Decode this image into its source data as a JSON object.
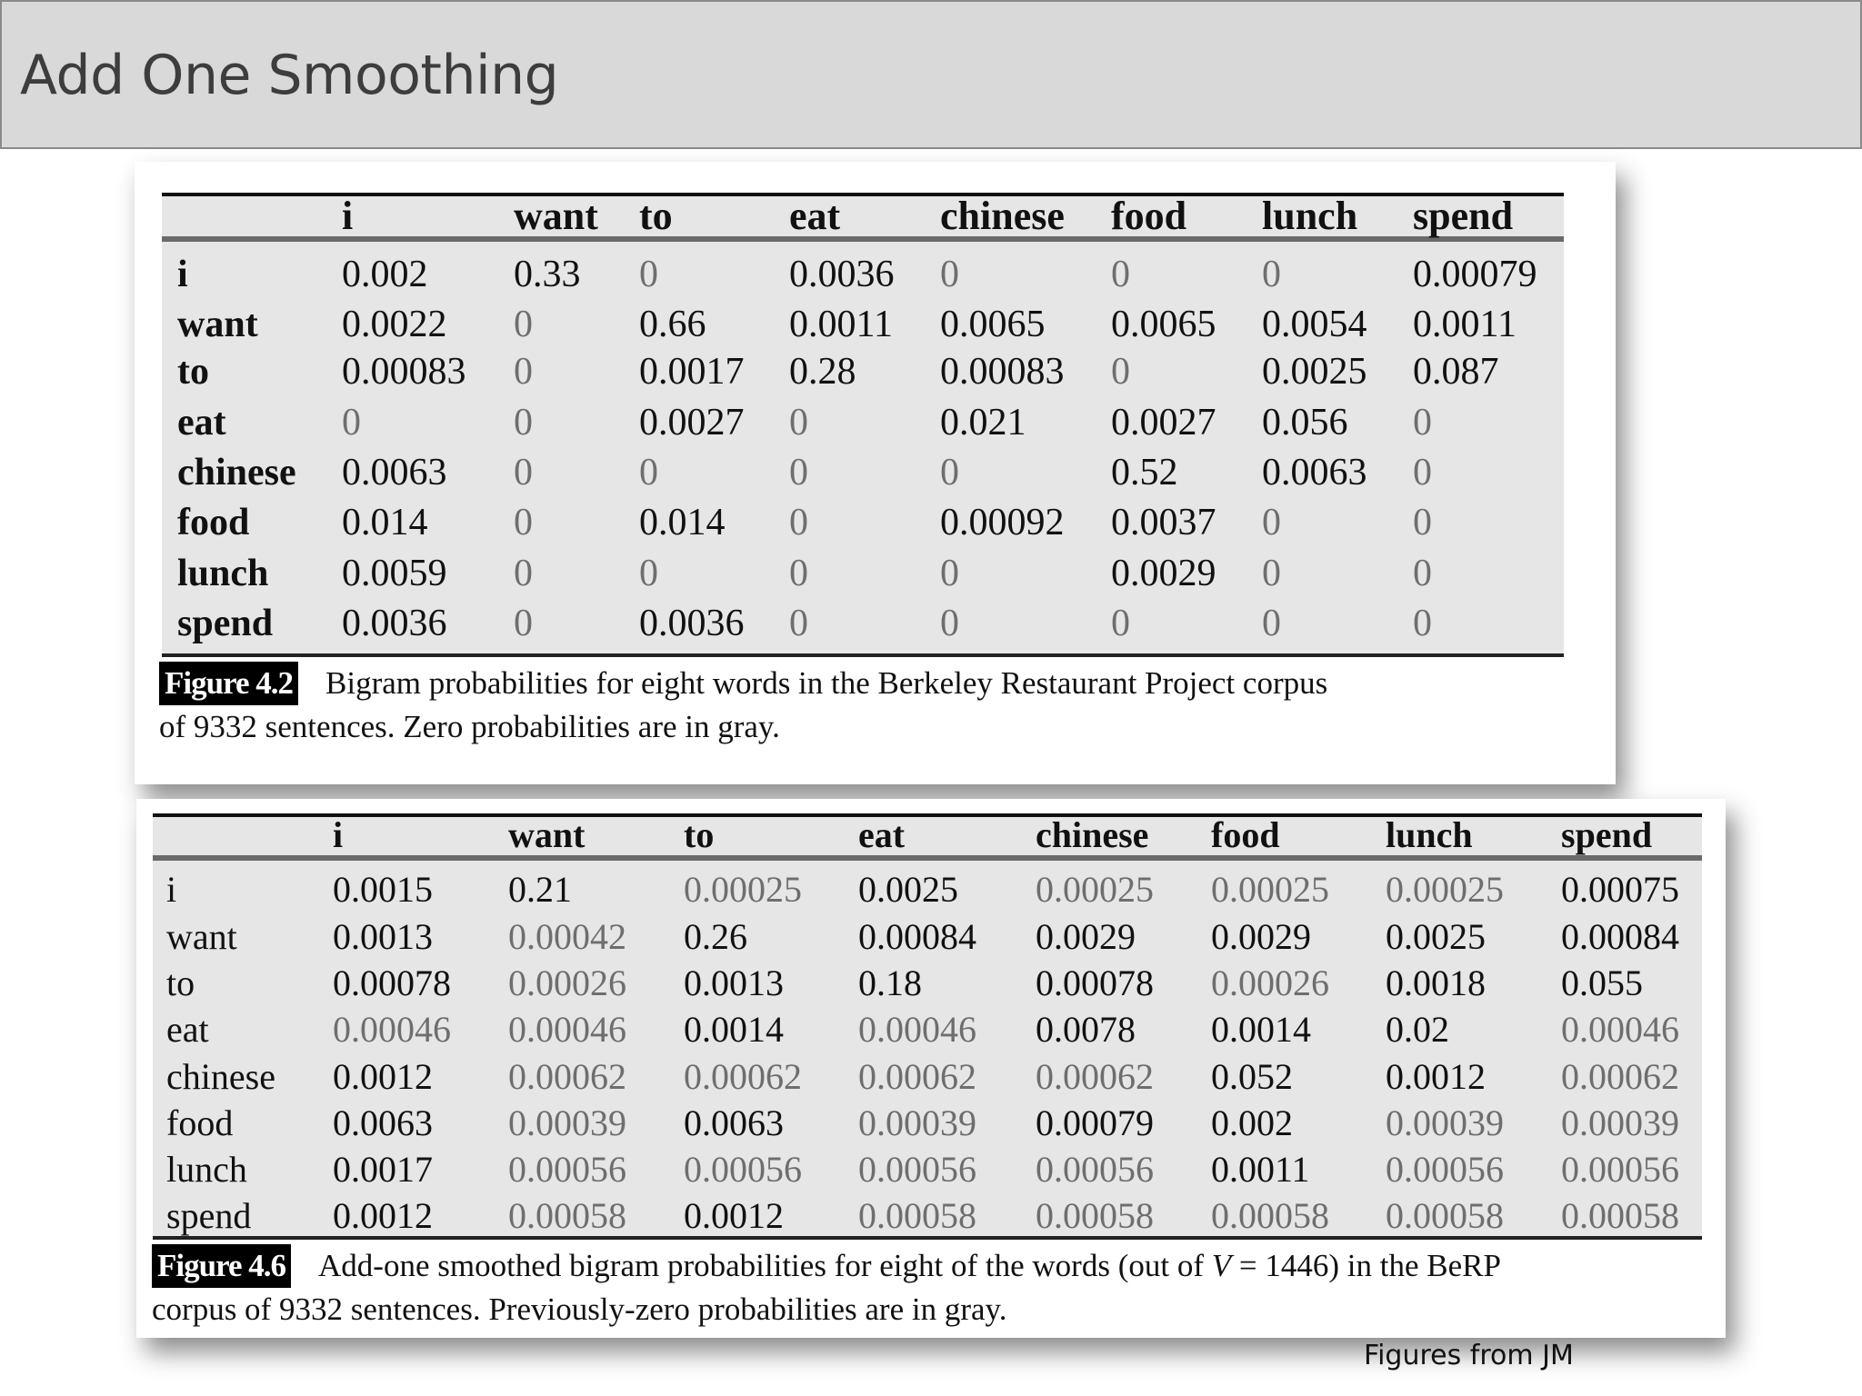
{
  "slide": {
    "title": "Add One Smoothing",
    "credit": "Figures from JM"
  },
  "figure1": {
    "label": "Figure 4.2",
    "caption_line1": "Bigram probabilities for eight words in the Berkeley Restaurant  Project corpus",
    "caption_line2": "of 9332 sentences. Zero probabilities are in gray.",
    "columns": [
      "i",
      "want",
      "to",
      "eat",
      "chinese",
      "food",
      "lunch",
      "spend"
    ],
    "rows": [
      {
        "label": "i",
        "values": [
          "0.002",
          "0.33",
          "0",
          "0.0036",
          "0",
          "0",
          "0",
          "0.00079"
        ]
      },
      {
        "label": "want",
        "values": [
          "0.0022",
          "0",
          "0.66",
          "0.0011",
          "0.0065",
          "0.0065",
          "0.0054",
          "0.0011"
        ]
      },
      {
        "label": "to",
        "values": [
          "0.00083",
          "0",
          "0.0017",
          "0.28",
          "0.00083",
          "0",
          "0.0025",
          "0.087"
        ]
      },
      {
        "label": "eat",
        "values": [
          "0",
          "0",
          "0.0027",
          "0",
          "0.021",
          "0.0027",
          "0.056",
          "0"
        ]
      },
      {
        "label": "chinese",
        "values": [
          "0.0063",
          "0",
          "0",
          "0",
          "0",
          "0.52",
          "0.0063",
          "0"
        ]
      },
      {
        "label": "food",
        "values": [
          "0.014",
          "0",
          "0.014",
          "0",
          "0.00092",
          "0.0037",
          "0",
          "0"
        ]
      },
      {
        "label": "lunch",
        "values": [
          "0.0059",
          "0",
          "0",
          "0",
          "0",
          "0.0029",
          "0",
          "0"
        ]
      },
      {
        "label": "spend",
        "values": [
          "0.0036",
          "0",
          "0.0036",
          "0",
          "0",
          "0",
          "0",
          "0"
        ]
      }
    ],
    "gray_mask": [
      [
        0,
        0,
        1,
        0,
        1,
        1,
        1,
        0
      ],
      [
        0,
        1,
        0,
        0,
        0,
        0,
        0,
        0
      ],
      [
        0,
        1,
        0,
        0,
        0,
        1,
        0,
        0
      ],
      [
        1,
        1,
        0,
        1,
        0,
        0,
        0,
        1
      ],
      [
        0,
        1,
        1,
        1,
        1,
        0,
        0,
        1
      ],
      [
        0,
        1,
        0,
        1,
        0,
        0,
        1,
        1
      ],
      [
        0,
        1,
        1,
        1,
        1,
        0,
        1,
        1
      ],
      [
        0,
        1,
        0,
        1,
        1,
        1,
        1,
        1
      ]
    ]
  },
  "figure2": {
    "label": "Figure 4.6",
    "caption_line1_pre": "Add-one smoothed bigram probabilities for eight of the words (out of ",
    "caption_var": "V",
    "caption_line1_post": " = 1446) in the BeRP",
    "caption_line2": "corpus of 9332 sentences. Previously-zero probabilities are in gray.",
    "columns": [
      "i",
      "want",
      "to",
      "eat",
      "chinese",
      "food",
      "lunch",
      "spend"
    ],
    "rows": [
      {
        "label": "i",
        "values": [
          "0.0015",
          "0.21",
          "0.00025",
          "0.0025",
          "0.00025",
          "0.00025",
          "0.00025",
          "0.00075"
        ]
      },
      {
        "label": "want",
        "values": [
          "0.0013",
          "0.00042",
          "0.26",
          "0.00084",
          "0.0029",
          "0.0029",
          "0.0025",
          "0.00084"
        ]
      },
      {
        "label": "to",
        "values": [
          "0.00078",
          "0.00026",
          "0.0013",
          "0.18",
          "0.00078",
          "0.00026",
          "0.0018",
          "0.055"
        ]
      },
      {
        "label": "eat",
        "values": [
          "0.00046",
          "0.00046",
          "0.0014",
          "0.00046",
          "0.0078",
          "0.0014",
          "0.02",
          "0.00046"
        ]
      },
      {
        "label": "chinese",
        "values": [
          "0.0012",
          "0.00062",
          "0.00062",
          "0.00062",
          "0.00062",
          "0.052",
          "0.0012",
          "0.00062"
        ]
      },
      {
        "label": "food",
        "values": [
          "0.0063",
          "0.00039",
          "0.0063",
          "0.00039",
          "0.00079",
          "0.002",
          "0.00039",
          "0.00039"
        ]
      },
      {
        "label": "lunch",
        "values": [
          "0.0017",
          "0.00056",
          "0.00056",
          "0.00056",
          "0.00056",
          "0.0011",
          "0.00056",
          "0.00056"
        ]
      },
      {
        "label": "spend",
        "values": [
          "0.0012",
          "0.00058",
          "0.0012",
          "0.00058",
          "0.00058",
          "0.00058",
          "0.00058",
          "0.00058"
        ]
      }
    ],
    "gray_mask": [
      [
        0,
        0,
        1,
        0,
        1,
        1,
        1,
        0
      ],
      [
        0,
        1,
        0,
        0,
        0,
        0,
        0,
        0
      ],
      [
        0,
        1,
        0,
        0,
        0,
        1,
        0,
        0
      ],
      [
        1,
        1,
        0,
        1,
        0,
        0,
        0,
        1
      ],
      [
        0,
        1,
        1,
        1,
        1,
        0,
        0,
        1
      ],
      [
        0,
        1,
        0,
        1,
        0,
        0,
        1,
        1
      ],
      [
        0,
        1,
        1,
        1,
        1,
        0,
        1,
        1
      ],
      [
        0,
        1,
        0,
        1,
        1,
        1,
        1,
        1
      ]
    ]
  },
  "colors": {
    "title_bar_bg": "#d9d9d9",
    "title_text": "#3d3d3d",
    "table_bg": "#e6e6e6",
    "zero_text": "#6e6e6e",
    "text": "#111111"
  }
}
